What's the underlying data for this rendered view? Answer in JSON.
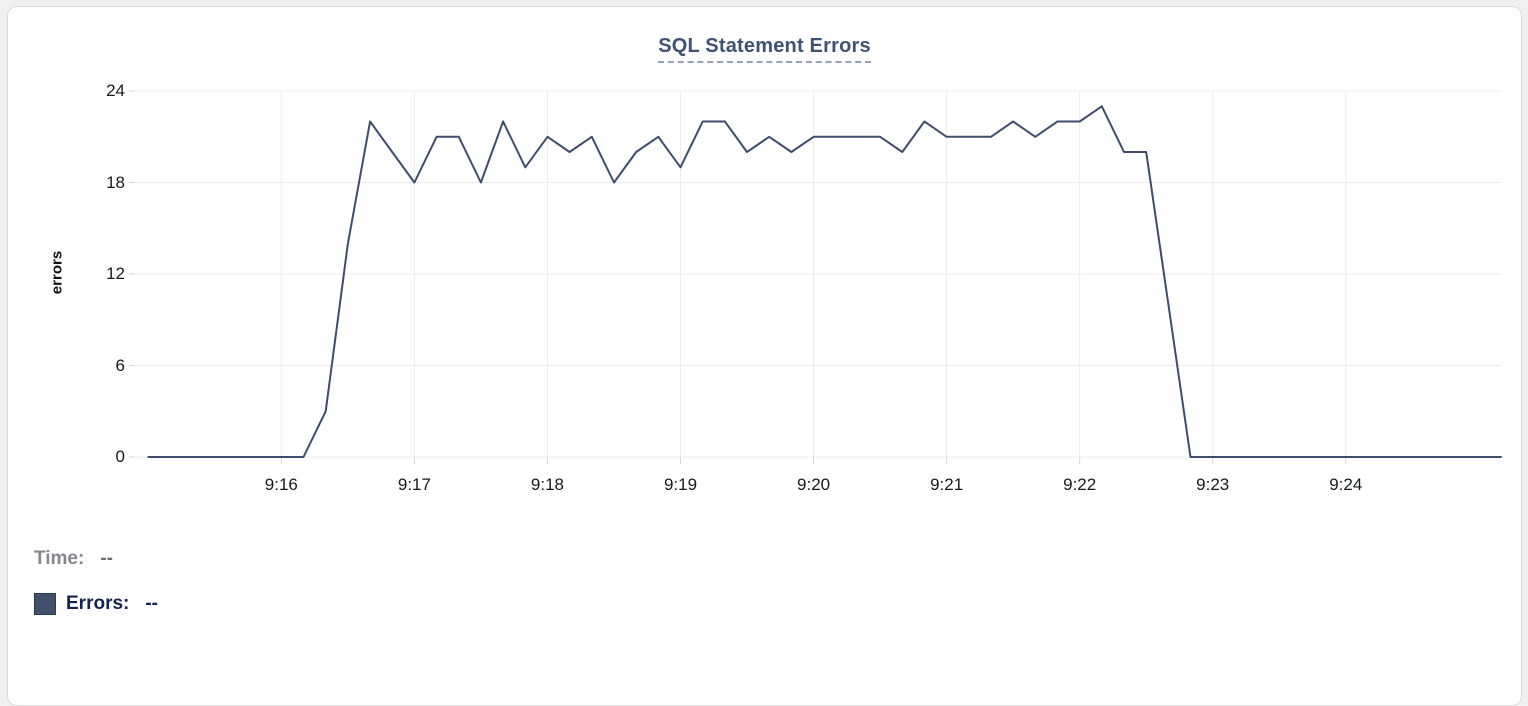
{
  "card": {
    "title": "SQL Statement Errors"
  },
  "legend": {
    "time_label": "Time:",
    "time_value": "--",
    "errors_label": "Errors:",
    "errors_value": "--",
    "swatch_color": "#41506b"
  },
  "colors": {
    "line": "#3e4d6b",
    "gridline": "#ececec",
    "tick": "#d7d7d7",
    "title": "#3e5373",
    "card_border": "#d9d9d9"
  },
  "chart_data": {
    "type": "line",
    "title": "SQL Statement Errors",
    "xlabel": "",
    "ylabel": "errors",
    "ylim": [
      0,
      24
    ],
    "y_ticks": [
      0,
      6,
      12,
      18,
      24
    ],
    "x_tick_labels": [
      "9:16",
      "9:17",
      "9:18",
      "9:19",
      "9:20",
      "9:21",
      "9:22",
      "9:23",
      "9:24"
    ],
    "x_range": [
      "9:14:54",
      "9:25:10"
    ],
    "grid": true,
    "legend_position": "bottom-left",
    "series": [
      {
        "name": "Errors",
        "color": "#3e4d6b",
        "times": [
          "9:15:00",
          "9:15:10",
          "9:15:20",
          "9:15:30",
          "9:15:40",
          "9:15:50",
          "9:16:00",
          "9:16:10",
          "9:16:20",
          "9:16:30",
          "9:16:40",
          "9:16:50",
          "9:17:00",
          "9:17:10",
          "9:17:20",
          "9:17:30",
          "9:17:40",
          "9:17:50",
          "9:18:00",
          "9:18:10",
          "9:18:20",
          "9:18:30",
          "9:18:40",
          "9:18:50",
          "9:19:00",
          "9:19:10",
          "9:19:20",
          "9:19:30",
          "9:19:40",
          "9:19:50",
          "9:20:00",
          "9:20:10",
          "9:20:20",
          "9:20:30",
          "9:20:40",
          "9:20:50",
          "9:21:00",
          "9:21:10",
          "9:21:20",
          "9:21:30",
          "9:21:40",
          "9:21:50",
          "9:22:00",
          "9:22:10",
          "9:22:20",
          "9:22:30",
          "9:22:40",
          "9:22:50",
          "9:23:00",
          "9:23:10",
          "9:23:20",
          "9:23:30",
          "9:23:40",
          "9:23:50",
          "9:24:00",
          "9:24:10",
          "9:24:20",
          "9:24:30",
          "9:24:40",
          "9:24:50",
          "9:25:00",
          "9:25:10"
        ],
        "values": [
          0,
          0,
          0,
          0,
          0,
          0,
          0,
          0,
          3,
          14,
          22,
          20,
          18,
          21,
          21,
          18,
          22,
          19,
          21,
          20,
          21,
          18,
          20,
          21,
          19,
          22,
          22,
          20,
          21,
          20,
          21,
          21,
          21,
          21,
          20,
          22,
          21,
          21,
          21,
          22,
          21,
          22,
          22,
          23,
          20,
          20,
          10,
          0,
          0,
          0,
          0,
          0,
          0,
          0,
          0,
          0,
          0,
          0,
          0,
          0,
          0,
          0
        ]
      }
    ]
  }
}
